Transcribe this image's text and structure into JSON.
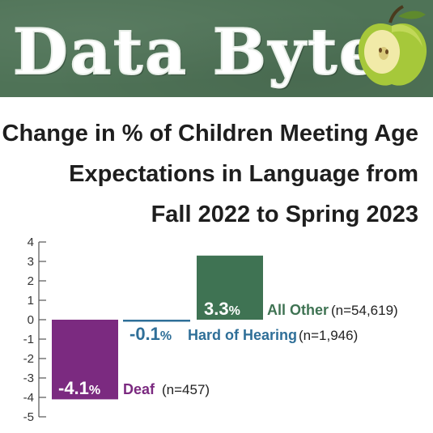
{
  "banner": {
    "title": "Data Byte"
  },
  "heading": {
    "lines": [
      "Change in % of Children Meeting Age",
      "Expectations in Language from",
      "Fall 2022 to Spring 2023"
    ]
  },
  "chart_data": {
    "type": "bar",
    "categories": [
      "Deaf",
      "Hard of Hearing",
      "All Other"
    ],
    "values": [
      -4.1,
      -0.1,
      3.3
    ],
    "value_labels": [
      "-4.1",
      "-0.1",
      "3.3"
    ],
    "value_suffix": "%",
    "n_labels": [
      "(n=457)",
      "(n=1,946)",
      "(n=54,619)"
    ],
    "colors": [
      "#7b2a80",
      "#2f6f98",
      "#3f7353"
    ],
    "ylim": [
      -5,
      4
    ],
    "yticks": [
      4,
      3,
      2,
      1,
      0,
      -1,
      -2,
      -3,
      -4,
      -5
    ],
    "grid": false,
    "legend": "none"
  }
}
